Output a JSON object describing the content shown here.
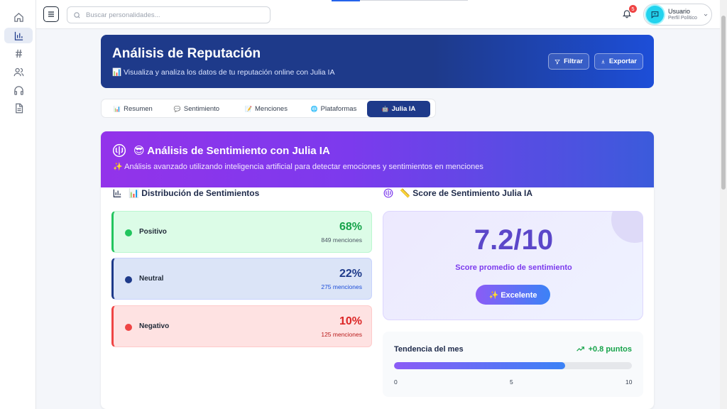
{
  "topbar": {
    "search_placeholder": "Buscar personalidades...",
    "notifications_count": "5",
    "user_name": "Usuario",
    "user_role": "Perfil Político"
  },
  "sidebar": {
    "items": [
      {
        "icon": "home-icon"
      },
      {
        "icon": "bar-chart-icon",
        "active": true
      },
      {
        "icon": "hashtag-icon"
      },
      {
        "icon": "users-icon"
      },
      {
        "icon": "headphones-icon"
      },
      {
        "icon": "document-icon"
      }
    ]
  },
  "header": {
    "title": "Análisis de Reputación",
    "subtitle": "📊 Visualiza y analiza los datos de tu reputación online con Julia IA",
    "filter_label": "Filtrar",
    "export_label": "Exportar"
  },
  "tabs": [
    {
      "icon": "📊",
      "label": "Resumen"
    },
    {
      "icon": "💬",
      "label": "Sentimiento"
    },
    {
      "icon": "📝",
      "label": "Menciones"
    },
    {
      "icon": "🌐",
      "label": "Plataformas"
    },
    {
      "icon": "🤖",
      "label": "Julia IA",
      "active": true
    }
  ],
  "julia": {
    "title": "😎 Análisis de Sentimiento con Julia IA",
    "subtitle": "✨ Análisis avanzado utilizando inteligencia artificial para detectar emociones y sentimientos en menciones",
    "distribution_title": "📊 Distribución de Sentimientos",
    "score_title": "📏 Score de Sentimiento Julia IA",
    "sentiments": [
      {
        "label": "Positivo",
        "percent": "68%",
        "mentions": "849 menciones",
        "color": "#22c55e"
      },
      {
        "label": "Neutral",
        "percent": "22%",
        "mentions": "275 menciones",
        "color": "#1e3a8a"
      },
      {
        "label": "Negativo",
        "percent": "10%",
        "mentions": "125 menciones",
        "color": "#ef4444"
      }
    ],
    "score_value": "7.2/10",
    "score_caption": "Score promedio de sentimiento",
    "score_badge": "✨ Excelente",
    "trend_label": "Tendencia del mes",
    "trend_delta": "+0.8 puntos",
    "trend_level": 0.72,
    "trend_ticks": [
      "0",
      "5",
      "10"
    ]
  },
  "colors": {
    "primary": "#1e3a8a",
    "accent_purple": "#7c3aed",
    "positive": "#22c55e",
    "negative": "#ef4444"
  }
}
